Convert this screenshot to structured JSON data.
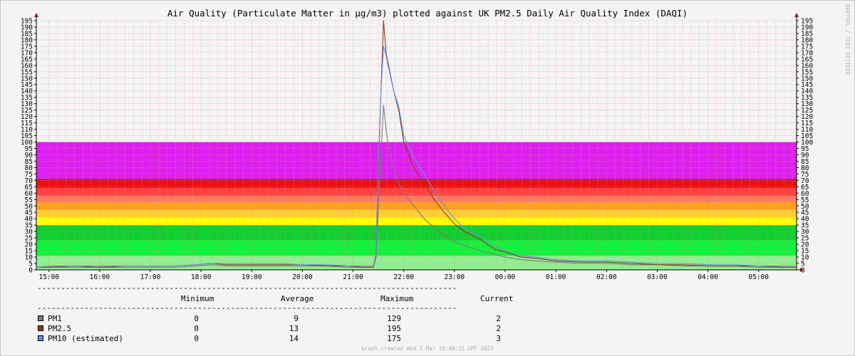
{
  "chart_data": {
    "type": "line",
    "title": "Air Quality (Particulate Matter in µg/m3) plotted against UK PM2.5 Daily Air Quality Index (DAQI)",
    "ylim": [
      0,
      195
    ],
    "y_ticks": [
      0,
      5,
      10,
      15,
      20,
      25,
      30,
      35,
      40,
      45,
      50,
      55,
      60,
      65,
      70,
      75,
      80,
      85,
      90,
      95,
      100,
      105,
      110,
      115,
      120,
      125,
      130,
      135,
      140,
      145,
      150,
      155,
      160,
      165,
      170,
      175,
      180,
      185,
      190,
      195
    ],
    "x_range": [
      14.75,
      29.75
    ],
    "x_ticks": [
      {
        "t": 15,
        "label": "15:00"
      },
      {
        "t": 16,
        "label": "16:00"
      },
      {
        "t": 17,
        "label": "17:00"
      },
      {
        "t": 18,
        "label": "18:00"
      },
      {
        "t": 19,
        "label": "19:00"
      },
      {
        "t": 20,
        "label": "20:00"
      },
      {
        "t": 21,
        "label": "21:00"
      },
      {
        "t": 22,
        "label": "22:00"
      },
      {
        "t": 23,
        "label": "23:00"
      },
      {
        "t": 24,
        "label": "00:00"
      },
      {
        "t": 25,
        "label": "01:00"
      },
      {
        "t": 26,
        "label": "02:00"
      },
      {
        "t": 27,
        "label": "03:00"
      },
      {
        "t": 28,
        "label": "04:00"
      },
      {
        "t": 29,
        "label": "05:00"
      }
    ],
    "grid": true,
    "bands": [
      {
        "from": 0,
        "to": 11,
        "color": "#90f090"
      },
      {
        "from": 11,
        "to": 23,
        "color": "#12f23a"
      },
      {
        "from": 23,
        "to": 35,
        "color": "#10cf30"
      },
      {
        "from": 35,
        "to": 41,
        "color": "#ffff00"
      },
      {
        "from": 41,
        "to": 47,
        "color": "#ffd030"
      },
      {
        "from": 47,
        "to": 53,
        "color": "#ffa020"
      },
      {
        "from": 53,
        "to": 58,
        "color": "#ff7a5a"
      },
      {
        "from": 58,
        "to": 64,
        "color": "#ff4040"
      },
      {
        "from": 64,
        "to": 70,
        "color": "#ee1010"
      },
      {
        "from": 70,
        "to": 71,
        "color": "#991010"
      },
      {
        "from": 71,
        "to": 100,
        "color": "#dd20f0"
      }
    ],
    "series": [
      {
        "name": "PM1",
        "color": "#7c7c7c",
        "minimum": "0",
        "average": "9",
        "maximum": "129",
        "current": "2",
        "points": [
          [
            14.75,
            2
          ],
          [
            15.0,
            2
          ],
          [
            15.5,
            2
          ],
          [
            16.0,
            2
          ],
          [
            16.5,
            2
          ],
          [
            17.0,
            2
          ],
          [
            17.5,
            2
          ],
          [
            17.9,
            3
          ],
          [
            18.2,
            4
          ],
          [
            18.5,
            3
          ],
          [
            19.0,
            3
          ],
          [
            19.5,
            3
          ],
          [
            20.0,
            3
          ],
          [
            20.5,
            3
          ],
          [
            20.9,
            2
          ],
          [
            21.2,
            2
          ],
          [
            21.4,
            2
          ],
          [
            21.45,
            10
          ],
          [
            21.5,
            50
          ],
          [
            21.55,
            90
          ],
          [
            21.6,
            129
          ],
          [
            21.65,
            110
          ],
          [
            21.7,
            95
          ],
          [
            21.8,
            80
          ],
          [
            21.9,
            68
          ],
          [
            22.0,
            60
          ],
          [
            22.2,
            50
          ],
          [
            22.4,
            40
          ],
          [
            22.6,
            33
          ],
          [
            22.8,
            27
          ],
          [
            23.0,
            22
          ],
          [
            23.2,
            19
          ],
          [
            23.5,
            15
          ],
          [
            23.8,
            12
          ],
          [
            24.0,
            10
          ],
          [
            24.3,
            8
          ],
          [
            24.6,
            7
          ],
          [
            25.0,
            6
          ],
          [
            25.5,
            5
          ],
          [
            26.0,
            5
          ],
          [
            26.5,
            4
          ],
          [
            27.0,
            4
          ],
          [
            27.5,
            3
          ],
          [
            28.0,
            3
          ],
          [
            28.5,
            3
          ],
          [
            29.0,
            2
          ],
          [
            29.5,
            2
          ],
          [
            29.75,
            2
          ]
        ]
      },
      {
        "name": "PM2.5",
        "color": "#8b3a10",
        "minimum": "0",
        "average": "13",
        "maximum": "195",
        "current": "2",
        "points": [
          [
            14.75,
            2
          ],
          [
            15.0,
            2
          ],
          [
            15.5,
            3
          ],
          [
            16.0,
            2
          ],
          [
            16.5,
            3
          ],
          [
            17.0,
            3
          ],
          [
            17.5,
            3
          ],
          [
            17.9,
            4
          ],
          [
            18.2,
            5
          ],
          [
            18.5,
            4
          ],
          [
            19.0,
            4
          ],
          [
            19.5,
            4
          ],
          [
            20.0,
            4
          ],
          [
            20.5,
            3
          ],
          [
            20.9,
            3
          ],
          [
            21.2,
            2
          ],
          [
            21.4,
            2
          ],
          [
            21.45,
            10
          ],
          [
            21.5,
            80
          ],
          [
            21.55,
            140
          ],
          [
            21.6,
            195
          ],
          [
            21.65,
            170
          ],
          [
            21.7,
            160
          ],
          [
            21.8,
            140
          ],
          [
            21.9,
            125
          ],
          [
            22.0,
            100
          ],
          [
            22.2,
            80
          ],
          [
            22.4,
            68
          ],
          [
            22.6,
            55
          ],
          [
            22.8,
            45
          ],
          [
            23.0,
            36
          ],
          [
            23.2,
            30
          ],
          [
            23.5,
            24
          ],
          [
            23.8,
            16
          ],
          [
            24.0,
            14
          ],
          [
            24.3,
            10
          ],
          [
            24.6,
            9
          ],
          [
            25.0,
            7
          ],
          [
            25.5,
            6
          ],
          [
            26.0,
            6
          ],
          [
            26.5,
            5
          ],
          [
            27.0,
            4
          ],
          [
            27.5,
            4
          ],
          [
            28.0,
            3
          ],
          [
            28.5,
            3
          ],
          [
            29.0,
            3
          ],
          [
            29.5,
            2
          ],
          [
            29.75,
            2
          ]
        ]
      },
      {
        "name": "PM10 (estimated)",
        "color": "#5f8fe8",
        "minimum": "0",
        "average": "14",
        "maximum": "175",
        "current": "3",
        "points": [
          [
            14.75,
            2
          ],
          [
            15.0,
            3
          ],
          [
            15.5,
            3
          ],
          [
            16.0,
            3
          ],
          [
            16.5,
            3
          ],
          [
            17.0,
            3
          ],
          [
            17.5,
            3
          ],
          [
            17.9,
            4
          ],
          [
            18.2,
            5
          ],
          [
            18.5,
            5
          ],
          [
            19.0,
            5
          ],
          [
            19.5,
            5
          ],
          [
            20.0,
            4
          ],
          [
            20.5,
            4
          ],
          [
            20.9,
            3
          ],
          [
            21.2,
            3
          ],
          [
            21.4,
            3
          ],
          [
            21.45,
            12
          ],
          [
            21.5,
            85
          ],
          [
            21.55,
            140
          ],
          [
            21.6,
            175
          ],
          [
            21.65,
            168
          ],
          [
            21.7,
            158
          ],
          [
            21.8,
            140
          ],
          [
            21.9,
            128
          ],
          [
            22.0,
            105
          ],
          [
            22.2,
            88
          ],
          [
            22.4,
            75
          ],
          [
            22.6,
            62
          ],
          [
            22.8,
            50
          ],
          [
            23.0,
            40
          ],
          [
            23.2,
            32
          ],
          [
            23.5,
            26
          ],
          [
            23.8,
            18
          ],
          [
            24.0,
            15
          ],
          [
            24.3,
            11
          ],
          [
            24.6,
            10
          ],
          [
            25.0,
            8
          ],
          [
            25.5,
            7
          ],
          [
            26.0,
            7
          ],
          [
            26.5,
            6
          ],
          [
            27.0,
            5
          ],
          [
            27.5,
            5
          ],
          [
            28.0,
            4
          ],
          [
            28.5,
            4
          ],
          [
            29.0,
            3
          ],
          [
            29.5,
            3
          ],
          [
            29.75,
            3
          ]
        ]
      }
    ]
  },
  "legend": {
    "rule": "-----------------------------------------------------------------------------------------",
    "headers": [
      "Minimum",
      "Average",
      "Maximum",
      "Current"
    ]
  },
  "vertical_text": "RRDTOOL / TOBI OETIKER",
  "footer": "Graph created Wed  1 Mar 18:40:25 GMT 2023"
}
